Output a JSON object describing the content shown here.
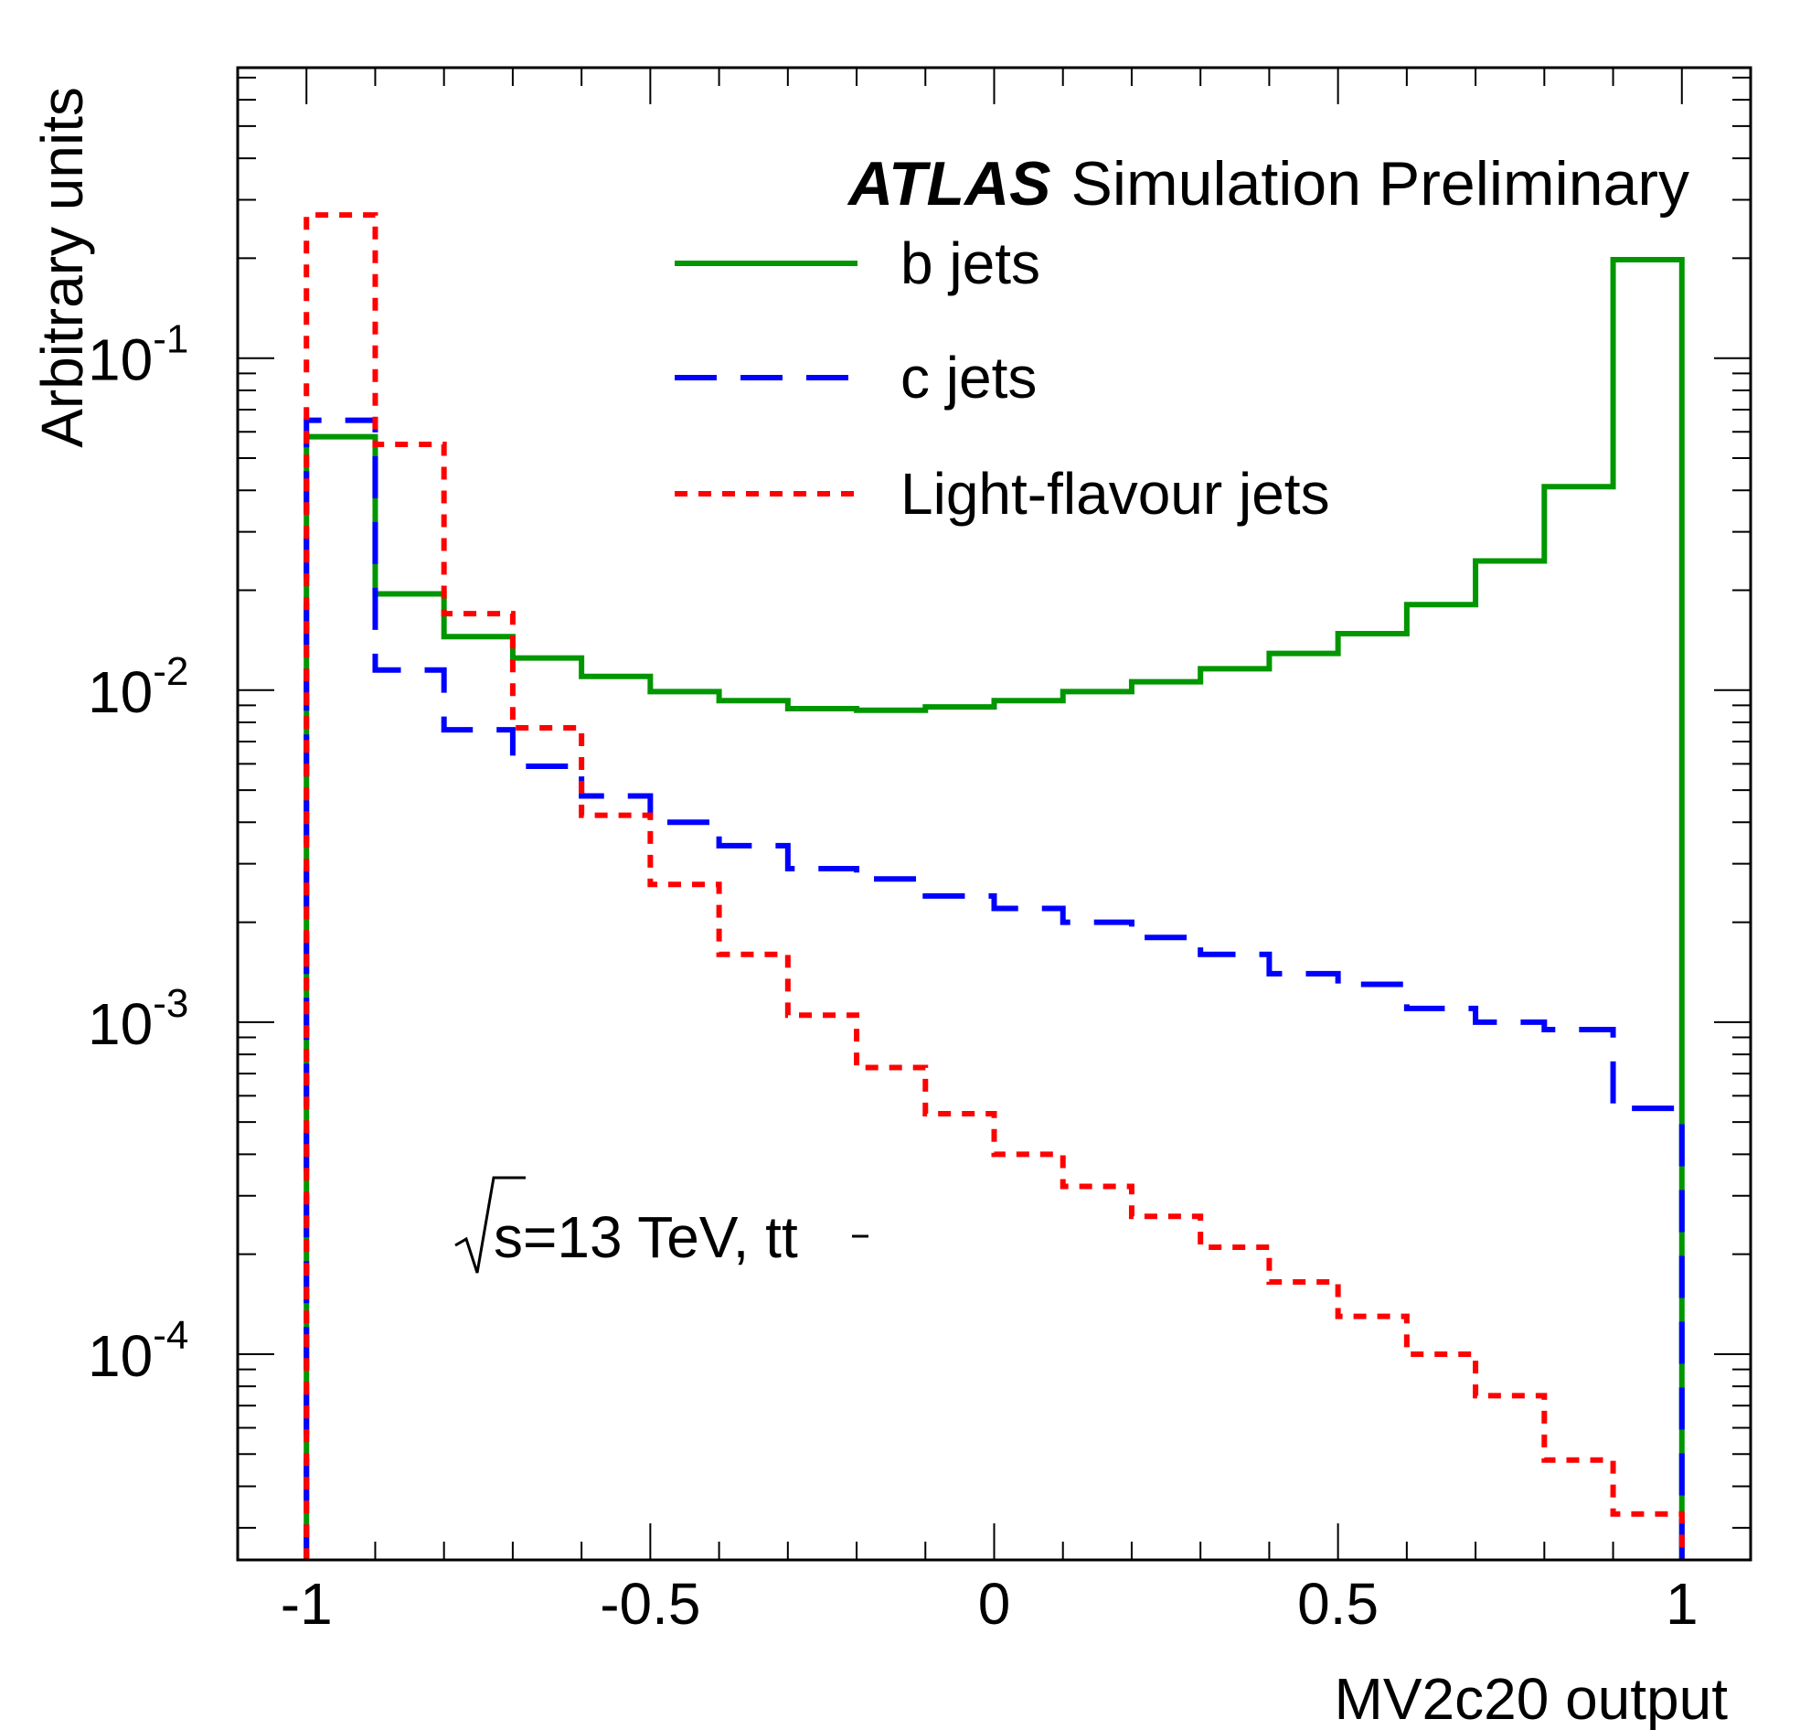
{
  "chart_data": {
    "type": "step-histogram",
    "xlabel": "MV2c20 output",
    "ylabel": "Arbitrary units",
    "xlim": [
      -1.1,
      1.1
    ],
    "ylim": [
      2.4e-05,
      0.75
    ],
    "yscale": "log",
    "x_ticks": [
      {
        "value": -1,
        "label": "-1"
      },
      {
        "value": -0.5,
        "label": "-0.5"
      },
      {
        "value": 0,
        "label": "0"
      },
      {
        "value": 0.5,
        "label": "0.5"
      },
      {
        "value": 1,
        "label": "1"
      }
    ],
    "y_ticks": [
      {
        "value": 0.1,
        "base": "10",
        "exp": "-1"
      },
      {
        "value": 0.01,
        "base": "10",
        "exp": "-2"
      },
      {
        "value": 0.001,
        "base": "10",
        "exp": "-3"
      },
      {
        "value": 0.0001,
        "base": "10",
        "exp": "-4"
      }
    ],
    "bin_edges": [
      -1.0,
      -0.9,
      -0.8,
      -0.7,
      -0.6,
      -0.5,
      -0.4,
      -0.3,
      -0.2,
      -0.1,
      0.0,
      0.1,
      0.2,
      0.3,
      0.4,
      0.5,
      0.6,
      0.7,
      0.8,
      0.9,
      1.0
    ],
    "series": [
      {
        "name": "b jets",
        "color": "#009600",
        "style": "solid",
        "values": [
          0.058,
          0.0195,
          0.0145,
          0.0125,
          0.011,
          0.0099,
          0.0093,
          0.0088,
          0.0087,
          0.0089,
          0.0093,
          0.0099,
          0.0106,
          0.0116,
          0.0129,
          0.0148,
          0.0181,
          0.0245,
          0.041,
          0.198
        ]
      },
      {
        "name": "c jets",
        "color": "#0000ff",
        "style": "dashed",
        "values": [
          0.065,
          0.0115,
          0.0076,
          0.0059,
          0.0048,
          0.004,
          0.0034,
          0.0029,
          0.0027,
          0.0024,
          0.0022,
          0.002,
          0.0018,
          0.0016,
          0.0014,
          0.0013,
          0.0011,
          0.001,
          0.00095,
          0.00055
        ]
      },
      {
        "name": "Light-flavour jets",
        "color": "#ff0000",
        "style": "dotted",
        "values": [
          0.27,
          0.055,
          0.017,
          0.0077,
          0.0042,
          0.0026,
          0.0016,
          0.00105,
          0.00073,
          0.00053,
          0.0004,
          0.00032,
          0.00026,
          0.00021,
          0.000165,
          0.00013,
          0.0001,
          7.5e-05,
          4.8e-05,
          3.3e-05
        ]
      }
    ],
    "legend": {
      "placement": "top-right",
      "items": [
        "b jets",
        "c jets",
        "Light-flavour jets"
      ]
    },
    "annotations": {
      "atlas_brand": "ATLAS",
      "atlas_label": "Simulation Preliminary",
      "energy_label": "s=13 TeV, tt"
    }
  }
}
